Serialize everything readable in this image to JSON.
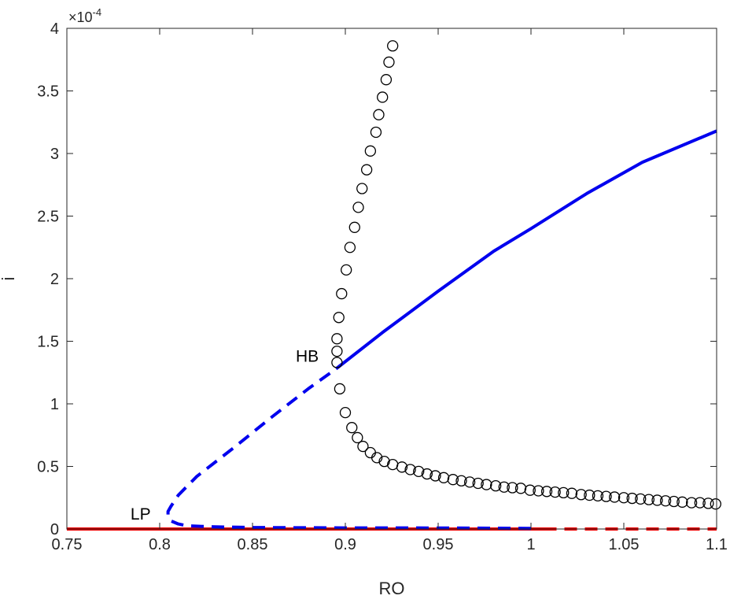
{
  "chart_data": {
    "type": "line",
    "title": "",
    "xlabel": "RO",
    "ylabel": "i",
    "xlim": [
      0.75,
      1.1
    ],
    "ylim": [
      0,
      0.0004
    ],
    "x_ticks": [
      0.75,
      0.8,
      0.85,
      0.9,
      0.95,
      1,
      1.05,
      1.1
    ],
    "x_tick_labels": [
      "0.75",
      "0.8",
      "0.85",
      "0.9",
      "0.95",
      "1",
      "1.05",
      "1.1"
    ],
    "y_ticks": [
      0,
      5e-05,
      0.0001,
      0.00015,
      0.0002,
      0.00025,
      0.0003,
      0.00035,
      0.0004
    ],
    "y_tick_labels": [
      "0",
      "0.5",
      "1",
      "1.5",
      "2",
      "2.5",
      "3",
      "3.5",
      "4"
    ],
    "y_exponent": {
      "base": "×10",
      "power": "-4"
    },
    "grid": false,
    "colors": {
      "stable_upper": "#0000ee",
      "unstable_upper": "#0000ee",
      "trivial": "#ee0000",
      "periodic": "#000000"
    },
    "series": [
      {
        "style": "solid",
        "color": "#ee0000",
        "points": [
          [
            0.75,
            0
          ],
          [
            1.007,
            0
          ]
        ]
      },
      {
        "style": "dashed",
        "color": "#ee0000",
        "points": [
          [
            1.007,
            0
          ],
          [
            1.1,
            0
          ]
        ]
      },
      {
        "style": "dashed",
        "color": "#0000ee",
        "points": [
          [
            1.0,
            5e-07
          ],
          [
            0.95,
            8e-07
          ],
          [
            0.9,
            9e-07
          ],
          [
            0.85,
            1.2e-06
          ],
          [
            0.83,
            1.7e-06
          ],
          [
            0.815,
            2.5e-06
          ],
          [
            0.81,
            4e-06
          ],
          [
            0.806,
            6.5e-06
          ],
          [
            0.8045,
            1e-05
          ],
          [
            0.8045,
            1.4e-05
          ],
          [
            0.806,
            1.8e-05
          ],
          [
            0.81,
            2.7e-05
          ],
          [
            0.82,
            4.2e-05
          ],
          [
            0.84,
            6.5e-05
          ],
          [
            0.86,
            8.9e-05
          ],
          [
            0.88,
            0.000112
          ],
          [
            0.895,
            0.000128
          ]
        ]
      },
      {
        "style": "solid",
        "color": "#0000ee",
        "points": [
          [
            0.895,
            0.000128
          ],
          [
            0.92,
            0.000157
          ],
          [
            0.95,
            0.00019
          ],
          [
            0.98,
            0.000222
          ],
          [
            1.0,
            0.00024
          ],
          [
            1.03,
            0.000268
          ],
          [
            1.06,
            0.000293
          ],
          [
            1.1,
            0.000318
          ]
        ]
      },
      {
        "style": "circles",
        "color": "#000000",
        "points": [
          [
            0.9255,
            0.000386
          ],
          [
            0.9235,
            0.000373
          ],
          [
            0.922,
            0.000359
          ],
          [
            0.92,
            0.000345
          ],
          [
            0.918,
            0.000331
          ],
          [
            0.9165,
            0.000317
          ],
          [
            0.9135,
            0.000302
          ],
          [
            0.9115,
            0.000287
          ],
          [
            0.909,
            0.000272
          ],
          [
            0.907,
            0.000257
          ],
          [
            0.905,
            0.000241
          ],
          [
            0.9025,
            0.000225
          ],
          [
            0.9005,
            0.000207
          ],
          [
            0.898,
            0.000188
          ],
          [
            0.8965,
            0.000169
          ],
          [
            0.8955,
            0.000152
          ],
          [
            0.8955,
            0.000142
          ],
          [
            0.8955,
            0.000133
          ],
          [
            0.897,
            0.000112
          ],
          [
            0.9,
            9.3e-05
          ],
          [
            0.9035,
            8.1e-05
          ],
          [
            0.9065,
            7.3e-05
          ],
          [
            0.9095,
            6.6e-05
          ],
          [
            0.9135,
            6.1e-05
          ],
          [
            0.917,
            5.7e-05
          ],
          [
            0.921,
            5.4e-05
          ],
          [
            0.9255,
            5.15e-05
          ],
          [
            0.9305,
            4.95e-05
          ],
          [
            0.935,
            4.75e-05
          ],
          [
            0.9395,
            4.6e-05
          ],
          [
            0.944,
            4.4e-05
          ],
          [
            0.9485,
            4.25e-05
          ],
          [
            0.953,
            4.1e-05
          ],
          [
            0.958,
            3.95e-05
          ],
          [
            0.9625,
            3.85e-05
          ],
          [
            0.967,
            3.75e-05
          ],
          [
            0.9715,
            3.65e-05
          ],
          [
            0.976,
            3.55e-05
          ],
          [
            0.981,
            3.45e-05
          ],
          [
            0.9855,
            3.35e-05
          ],
          [
            0.99,
            3.3e-05
          ],
          [
            0.9945,
            3.25e-05
          ],
          [
            0.9995,
            3.1e-05
          ],
          [
            1.004,
            3.05e-05
          ],
          [
            1.0085,
            3e-05
          ],
          [
            1.013,
            2.95e-05
          ],
          [
            1.0175,
            2.9e-05
          ],
          [
            1.022,
            2.85e-05
          ],
          [
            1.027,
            2.75e-05
          ],
          [
            1.0315,
            2.7e-05
          ],
          [
            1.036,
            2.65e-05
          ],
          [
            1.0405,
            2.6e-05
          ],
          [
            1.045,
            2.55e-05
          ],
          [
            1.05,
            2.5e-05
          ],
          [
            1.0545,
            2.45e-05
          ],
          [
            1.059,
            2.4e-05
          ],
          [
            1.0635,
            2.35e-05
          ],
          [
            1.068,
            2.3e-05
          ],
          [
            1.0725,
            2.25e-05
          ],
          [
            1.077,
            2.2e-05
          ],
          [
            1.0815,
            2.15e-05
          ],
          [
            1.0865,
            2.1e-05
          ],
          [
            1.091,
            2.1e-05
          ],
          [
            1.0955,
            2.05e-05
          ],
          [
            1.0995,
            2e-05
          ]
        ]
      }
    ],
    "annotations": [
      {
        "text": "HB",
        "x": 0.895,
        "y": 0.000138
      },
      {
        "text": "LP",
        "x": 0.8045,
        "y": 1.2e-05
      }
    ]
  }
}
